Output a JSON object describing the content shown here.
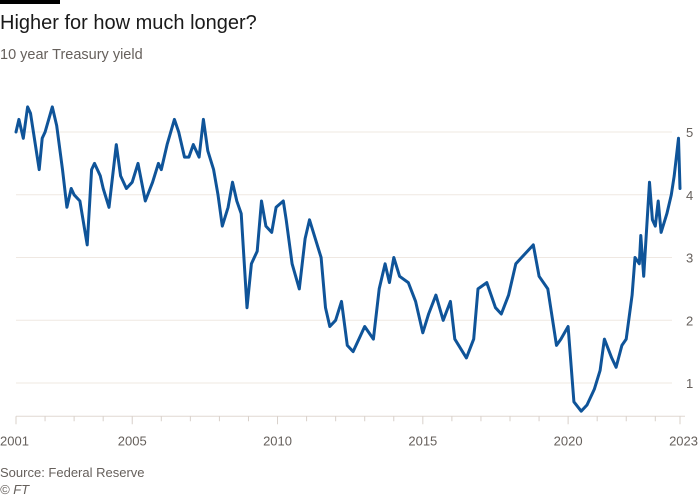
{
  "chart_data": {
    "type": "line",
    "title": "Higher for how much longer?",
    "subtitle": "10 year Treasury yield",
    "source": "Source: Federal Reserve",
    "copyright": "© FT",
    "xlim": [
      2001,
      2023.85
    ],
    "ylim": [
      0.47,
      5.5
    ],
    "grid": true,
    "line_color": "#0f5499",
    "x_tick_labels": [
      {
        "x": 2001,
        "label": "2001"
      },
      {
        "x": 2005,
        "label": "2005"
      },
      {
        "x": 2010,
        "label": "2010"
      },
      {
        "x": 2015,
        "label": "2015"
      },
      {
        "x": 2020,
        "label": "2020"
      },
      {
        "x": 2023.85,
        "label": "2023"
      }
    ],
    "y_ticks": [
      1,
      2,
      3,
      4,
      5
    ],
    "y_tick_labels": [
      "1",
      "2",
      "3",
      "4",
      "5"
    ],
    "series": [
      {
        "x": [
          2001.0,
          2001.1,
          2001.25,
          2001.4,
          2001.5,
          2001.6,
          2001.8,
          2001.9,
          2002.0,
          2002.25,
          2002.4,
          2002.6,
          2002.75,
          2002.9,
          2003.0,
          2003.2,
          2003.45,
          2003.6,
          2003.7,
          2003.9,
          2004.0,
          2004.2,
          2004.45,
          2004.6,
          2004.8,
          2005.0,
          2005.2,
          2005.45,
          2005.7,
          2005.9,
          2006.0,
          2006.2,
          2006.45,
          2006.6,
          2006.8,
          2006.95,
          2007.1,
          2007.3,
          2007.45,
          2007.6,
          2007.8,
          2007.95,
          2008.1,
          2008.3,
          2008.45,
          2008.6,
          2008.75,
          2008.95,
          2009.1,
          2009.3,
          2009.45,
          2009.6,
          2009.8,
          2009.95,
          2010.2,
          2010.3,
          2010.5,
          2010.75,
          2010.95,
          2011.1,
          2011.3,
          2011.5,
          2011.65,
          2011.8,
          2012.0,
          2012.2,
          2012.4,
          2012.6,
          2012.8,
          2013.0,
          2013.3,
          2013.5,
          2013.7,
          2013.85,
          2014.0,
          2014.2,
          2014.5,
          2014.75,
          2015.0,
          2015.2,
          2015.45,
          2015.7,
          2015.95,
          2016.1,
          2016.5,
          2016.75,
          2016.9,
          2017.2,
          2017.5,
          2017.7,
          2017.95,
          2018.2,
          2018.4,
          2018.8,
          2019.0,
          2019.3,
          2019.6,
          2019.75,
          2020.0,
          2020.2,
          2020.45,
          2020.65,
          2020.9,
          2021.1,
          2021.25,
          2021.5,
          2021.65,
          2021.85,
          2022.0,
          2022.2,
          2022.3,
          2022.45,
          2022.5,
          2022.6,
          2022.8,
          2022.9,
          2023.0,
          2023.1,
          2023.2,
          2023.4,
          2023.55,
          2023.65,
          2023.8,
          2023.85
        ],
        "values": [
          5.0,
          5.2,
          4.9,
          5.4,
          5.3,
          5.0,
          4.4,
          4.9,
          5.0,
          5.4,
          5.1,
          4.4,
          3.8,
          4.1,
          4.0,
          3.9,
          3.2,
          4.4,
          4.5,
          4.3,
          4.1,
          3.8,
          4.8,
          4.3,
          4.1,
          4.2,
          4.5,
          3.9,
          4.2,
          4.5,
          4.4,
          4.8,
          5.2,
          5.0,
          4.6,
          4.6,
          4.8,
          4.6,
          5.2,
          4.7,
          4.4,
          4.0,
          3.5,
          3.8,
          4.2,
          3.9,
          3.7,
          2.2,
          2.9,
          3.1,
          3.9,
          3.5,
          3.4,
          3.8,
          3.9,
          3.6,
          2.9,
          2.5,
          3.3,
          3.6,
          3.3,
          3.0,
          2.2,
          1.9,
          2.0,
          2.3,
          1.6,
          1.5,
          1.7,
          1.9,
          1.7,
          2.5,
          2.9,
          2.6,
          3.0,
          2.7,
          2.6,
          2.3,
          1.8,
          2.1,
          2.4,
          2.0,
          2.3,
          1.7,
          1.4,
          1.7,
          2.5,
          2.6,
          2.2,
          2.1,
          2.4,
          2.9,
          3.0,
          3.2,
          2.7,
          2.5,
          1.6,
          1.7,
          1.9,
          0.7,
          0.55,
          0.65,
          0.9,
          1.2,
          1.7,
          1.4,
          1.25,
          1.6,
          1.7,
          2.4,
          3.0,
          2.9,
          3.35,
          2.7,
          4.2,
          3.6,
          3.5,
          3.9,
          3.4,
          3.7,
          4.0,
          4.3,
          4.9,
          4.1
        ]
      }
    ]
  }
}
